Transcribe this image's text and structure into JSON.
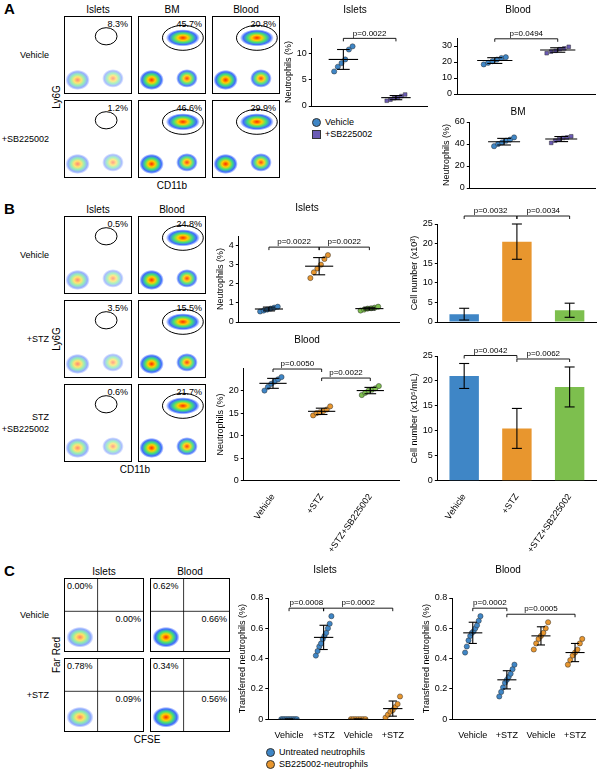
{
  "chart_data": [
    {
      "type": "scatter",
      "title": "Islets",
      "y_label": "Neutrophils (%)",
      "categories": [
        null,
        null
      ],
      "tick_labels": "y",
      "ylim": [
        0,
        13
      ],
      "yticks": [
        0,
        5,
        10
      ],
      "grid": false,
      "legend": "bottom",
      "series": [
        {
          "name": "Vehicle",
          "color": "#3f86c6",
          "marker": "circle",
          "values": [
            [
              6.6,
              7.5,
              8.2,
              8.9,
              10.8,
              11.4
            ],
            null
          ],
          "means": [
            8.9,
            null
          ],
          "errors": [
            1.9,
            null
          ]
        },
        {
          "name": "+SB225002",
          "color": "#6b5bb5",
          "marker": "square",
          "values": [
            null,
            [
              1.0,
              1.2,
              1.5,
              1.6,
              1.9,
              2.2
            ]
          ],
          "means": [
            null,
            1.6
          ],
          "errors": [
            null,
            0.4
          ]
        }
      ],
      "annotations": [
        {
          "text": "p=0.0022",
          "between": [
            0,
            1
          ]
        }
      ]
    },
    {
      "type": "scatter",
      "title": "Blood",
      "categories": [
        null,
        null
      ],
      "tick_labels": "y",
      "ylim": [
        0,
        35
      ],
      "yticks": [
        0,
        10,
        20,
        30
      ],
      "grid": false,
      "series": [
        {
          "color": "#3f86c6",
          "marker": "circle",
          "values": [
            [
              18.5,
              19.5,
              20.5,
              21.5,
              22.5,
              23.0
            ],
            null
          ],
          "means": [
            20.9,
            null
          ],
          "errors": [
            1.8,
            null
          ]
        },
        {
          "color": "#6b5bb5",
          "marker": "square",
          "values": [
            null,
            [
              25.5,
              26.5,
              27.0,
              28.0,
              28.5,
              29.5
            ]
          ],
          "means": [
            null,
            27.5
          ],
          "errors": [
            null,
            1.4
          ]
        }
      ],
      "annotations": [
        {
          "text": "p=0.0494",
          "between": [
            0,
            1
          ]
        }
      ]
    },
    {
      "type": "scatter",
      "title": "BM",
      "y_label": "Neutrophils (%)",
      "categories": [
        null,
        null
      ],
      "tick_labels": "y",
      "ylim": [
        0,
        60
      ],
      "yticks": [
        0,
        20,
        40,
        60
      ],
      "grid": false,
      "series": [
        {
          "color": "#3f86c6",
          "marker": "circle",
          "values": [
            [
              38,
              40,
              41.5,
              43,
              44,
              46
            ],
            null
          ],
          "means": [
            42.1,
            null
          ],
          "errors": [
            3.0,
            null
          ]
        },
        {
          "color": "#6b5bb5",
          "marker": "square",
          "values": [
            null,
            [
              41,
              43,
              44.5,
              45.5,
              46,
              47
            ]
          ],
          "means": [
            null,
            44.5
          ],
          "errors": [
            null,
            2.3
          ]
        }
      ]
    },
    {
      "type": "scatter",
      "title": "Islets",
      "y_label": "Neutrophils (%)",
      "categories": [
        null,
        null,
        null
      ],
      "tick_labels": "y",
      "ylim": [
        0,
        4.5
      ],
      "yticks": [
        0,
        1,
        2,
        3,
        4
      ],
      "grid": false,
      "series": [
        {
          "colors": [
            "#3f86c6",
            "#e8962e",
            "#7dbf4e"
          ],
          "marker": "circle",
          "values": [
            [
              0.55,
              0.6,
              0.65,
              0.7,
              0.75,
              0.8
            ],
            [
              2.3,
              2.6,
              2.8,
              3.0,
              3.3,
              3.5
            ],
            [
              0.6,
              0.65,
              0.7,
              0.72,
              0.75,
              0.8
            ]
          ],
          "means": [
            0.68,
            2.92,
            0.7
          ],
          "errors": [
            0.1,
            0.45,
            0.07
          ]
        }
      ],
      "annotations": [
        {
          "text": "p=0.0022",
          "between": [
            0,
            1
          ]
        },
        {
          "text": "p=0.0022",
          "between": [
            1,
            2
          ]
        }
      ]
    },
    {
      "type": "scatter",
      "title": "Blood",
      "y_label": "Neutrophils (%)",
      "categories": [
        "Vehicle",
        "+STZ",
        "+STZ+SB225002"
      ],
      "tick_labels": true,
      "ylim": [
        0,
        25
      ],
      "yticks": [
        0,
        5,
        10,
        15,
        20
      ],
      "grid": false,
      "series": [
        {
          "colors": [
            "#3f86c6",
            "#e8962e",
            "#7dbf4e"
          ],
          "marker": "circle",
          "values": [
            [
              20,
              20.8,
              21.5,
              22,
              22.5,
              23
            ],
            [
              14.5,
              15,
              15.2,
              15.5,
              15.8,
              16.5
            ],
            [
              19,
              19.5,
              20,
              20.2,
              20.5,
              21
            ]
          ],
          "means": [
            21.6,
            15.4,
            20.0
          ],
          "errors": [
            1.1,
            0.7,
            0.7
          ]
        }
      ],
      "annotations": [
        {
          "text": "p=0.0050",
          "between": [
            0,
            1
          ]
        },
        {
          "text": "p=0.0022",
          "between": [
            1,
            2
          ]
        }
      ]
    },
    {
      "type": "bar",
      "y_label": "Cell number (x10³)",
      "categories": [
        null,
        null,
        null
      ],
      "tick_labels": "y",
      "ylim": [
        0,
        25
      ],
      "yticks": [
        0,
        5,
        10,
        15,
        20,
        25
      ],
      "grid": false,
      "values": [
        2.0,
        20.5,
        3.0
      ],
      "errors": [
        1.5,
        4.5,
        1.8
      ],
      "colors": [
        "#3f86c6",
        "#e8962e",
        "#7dbf4e"
      ],
      "annotations": [
        {
          "text": "p=0.0032",
          "between": [
            0,
            1
          ]
        },
        {
          "text": "p=0.0034",
          "between": [
            1,
            2
          ]
        }
      ]
    },
    {
      "type": "bar",
      "y_label": "Cell number (x10⁵/mL)",
      "categories": [
        "Vehicle",
        "+STZ",
        "+STZ+SB225002"
      ],
      "tick_labels": true,
      "ylim": [
        0,
        25
      ],
      "yticks": [
        0,
        5,
        10,
        15,
        20,
        25
      ],
      "grid": false,
      "values": [
        21.0,
        10.5,
        18.8
      ],
      "errors": [
        2.5,
        4.0,
        4.0
      ],
      "colors": [
        "#3f86c6",
        "#e8962e",
        "#7dbf4e"
      ],
      "annotations": [
        {
          "text": "p=0.0042",
          "between": [
            0,
            1
          ]
        },
        {
          "text": "p=0.0062",
          "between": [
            1,
            2
          ]
        }
      ]
    },
    {
      "type": "scatter",
      "title": "Islets",
      "y_label": "Transferred neutrophils (%)",
      "categories": [
        "Vehicle",
        "+STZ",
        "Vehicle",
        "+STZ"
      ],
      "tick_labels": true,
      "ylim": [
        0,
        0.8
      ],
      "yticks": [
        0,
        0.2,
        0.4,
        0.6,
        0.8
      ],
      "grid": false,
      "legend": "bottom",
      "series": [
        {
          "name": "Untreated neutrophils",
          "color": "#3f86c6",
          "marker": "circle",
          "values": [
            [
              0,
              0,
              0,
              0,
              0,
              0,
              0,
              0,
              0,
              0
            ],
            [
              0.42,
              0.45,
              0.48,
              0.5,
              0.53,
              0.55,
              0.57,
              0.6,
              0.63,
              0.68
            ],
            null,
            null
          ],
          "means": [
            0,
            0.54,
            null,
            null
          ],
          "errors": [
            0,
            0.08,
            null,
            null
          ]
        },
        {
          "name": "SB225002-neutrophils",
          "color": "#e8962e",
          "marker": "circle",
          "values": [
            null,
            null,
            [
              0,
              0,
              0,
              0,
              0,
              0,
              0
            ],
            [
              0.01,
              0.03,
              0.05,
              0.06,
              0.08,
              0.1,
              0.15
            ]
          ],
          "means": [
            null,
            null,
            0,
            0.07
          ],
          "errors": [
            null,
            null,
            0,
            0.05
          ]
        }
      ],
      "annotations": [
        {
          "text": "p=0.0008",
          "between": [
            0,
            1
          ]
        },
        {
          "text": "p=0.0002",
          "between": [
            1,
            3
          ]
        }
      ]
    },
    {
      "type": "scatter",
      "title": "Blood",
      "y_label": "Transferred neutrophils (%)",
      "categories": [
        "Vehicle",
        "+STZ",
        "Vehicle",
        "+STZ"
      ],
      "tick_labels": true,
      "ylim": [
        0,
        0.8
      ],
      "yticks": [
        0,
        0.2,
        0.4,
        0.6,
        0.8
      ],
      "grid": false,
      "series": [
        {
          "color": "#3f86c6",
          "marker": "circle",
          "values": [
            [
              0.44,
              0.48,
              0.52,
              0.55,
              0.57,
              0.58,
              0.6,
              0.62,
              0.65,
              0.68
            ],
            [
              0.15,
              0.18,
              0.21,
              0.24,
              0.26,
              0.28,
              0.3,
              0.33,
              0.36
            ],
            null,
            null
          ],
          "means": [
            0.57,
            0.26,
            null,
            null
          ],
          "errors": [
            0.07,
            0.06,
            null,
            null
          ]
        },
        {
          "color": "#e8962e",
          "marker": "circle",
          "values": [
            null,
            null,
            [
              0.46,
              0.5,
              0.53,
              0.55,
              0.57,
              0.6,
              0.64
            ],
            [
              0.36,
              0.39,
              0.42,
              0.44,
              0.46,
              0.5,
              0.53
            ]
          ],
          "means": [
            null,
            null,
            0.55,
            0.44
          ],
          "errors": [
            null,
            null,
            0.06,
            0.06
          ]
        }
      ],
      "annotations": [
        {
          "text": "p=0.0002",
          "between": [
            0,
            1
          ]
        },
        {
          "text": "p=0.0005",
          "between": [
            1,
            3
          ]
        }
      ]
    }
  ],
  "figure": {
    "panels": [
      {
        "label": "A",
        "x_label": "CD11b",
        "y_label": "Ly6G",
        "kind": "gate",
        "columns": [
          "Islets",
          "BM",
          "Blood"
        ],
        "rows": [
          {
            "label": "Vehicle",
            "gates": [
              "8.3%",
              "45.7%",
              "20.8%"
            ]
          },
          {
            "label": "+SB225002",
            "gates": [
              "1.2%",
              "46.6%",
              "29.9%"
            ]
          }
        ]
      },
      {
        "label": "B",
        "x_label": "CD11b",
        "y_label": "Ly6G",
        "kind": "gate",
        "columns": [
          "Islets",
          "Blood"
        ],
        "rows": [
          {
            "label": "Vehicle",
            "gates": [
              "0.5%",
              "24.8%"
            ]
          },
          {
            "label": "+STZ",
            "gates": [
              "3.5%",
              "15.5%"
            ]
          },
          {
            "label": [
              "STZ",
              "+SB225002"
            ],
            "gates": [
              "0.6%",
              "21.7%"
            ]
          }
        ]
      },
      {
        "label": "C",
        "x_label": "CFSE",
        "y_label": "Far Red",
        "kind": "quadrant",
        "columns": [
          "Islets",
          "Blood"
        ],
        "rows": [
          {
            "label": "Vehicle",
            "gates": [
              [
                "0.00%",
                "0.00%"
              ],
              [
                "0.62%",
                "0.66%"
              ]
            ]
          },
          {
            "label": "+STZ",
            "gates": [
              [
                "0.78%",
                "0.09%"
              ],
              [
                "0.34%",
                "0.56%"
              ]
            ]
          }
        ]
      }
    ]
  }
}
